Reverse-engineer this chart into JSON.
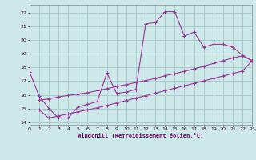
{
  "bg": "#cce8e8",
  "grid_color": "#aacccc",
  "lc": "#993399",
  "xlabel": "Windchill (Refroidissement éolien,°C)",
  "xlim": [
    0,
    23
  ],
  "ylim": [
    13.8,
    22.6
  ],
  "yticks": [
    14,
    15,
    16,
    17,
    18,
    19,
    20,
    21,
    22
  ],
  "xticks": [
    0,
    1,
    2,
    3,
    4,
    5,
    6,
    7,
    8,
    9,
    10,
    11,
    12,
    13,
    14,
    15,
    16,
    17,
    18,
    19,
    20,
    21,
    22,
    23
  ],
  "line1_x": [
    0,
    1,
    2,
    3,
    4,
    5,
    6,
    7,
    8,
    9,
    10,
    11,
    12,
    13,
    14,
    15,
    16,
    17,
    18,
    19,
    20,
    21,
    22,
    23
  ],
  "line1_y": [
    17.7,
    15.9,
    15.0,
    14.3,
    14.3,
    15.1,
    15.3,
    15.5,
    17.6,
    16.1,
    16.2,
    16.4,
    21.2,
    21.3,
    22.1,
    22.1,
    20.3,
    20.6,
    19.5,
    19.7,
    19.7,
    19.5,
    18.9,
    18.5
  ],
  "line2_x": [
    1,
    2,
    3,
    4,
    5,
    6,
    7,
    8,
    9,
    10,
    11,
    12,
    13,
    14,
    15,
    16,
    17,
    18,
    19,
    20,
    21,
    22,
    23
  ],
  "line2_y": [
    15.6,
    15.7,
    15.85,
    15.95,
    16.05,
    16.15,
    16.3,
    16.45,
    16.6,
    16.75,
    16.9,
    17.05,
    17.2,
    17.4,
    17.55,
    17.72,
    17.9,
    18.1,
    18.3,
    18.5,
    18.7,
    18.85,
    18.5
  ],
  "line3_x": [
    1,
    2,
    3,
    4,
    5,
    6,
    7,
    8,
    9,
    10,
    11,
    12,
    13,
    14,
    15,
    16,
    17,
    18,
    19,
    20,
    21,
    22,
    23
  ],
  "line3_y": [
    14.9,
    14.3,
    14.45,
    14.6,
    14.75,
    14.9,
    15.05,
    15.22,
    15.4,
    15.58,
    15.76,
    15.94,
    16.12,
    16.3,
    16.48,
    16.66,
    16.84,
    17.02,
    17.2,
    17.38,
    17.56,
    17.74,
    18.5
  ]
}
